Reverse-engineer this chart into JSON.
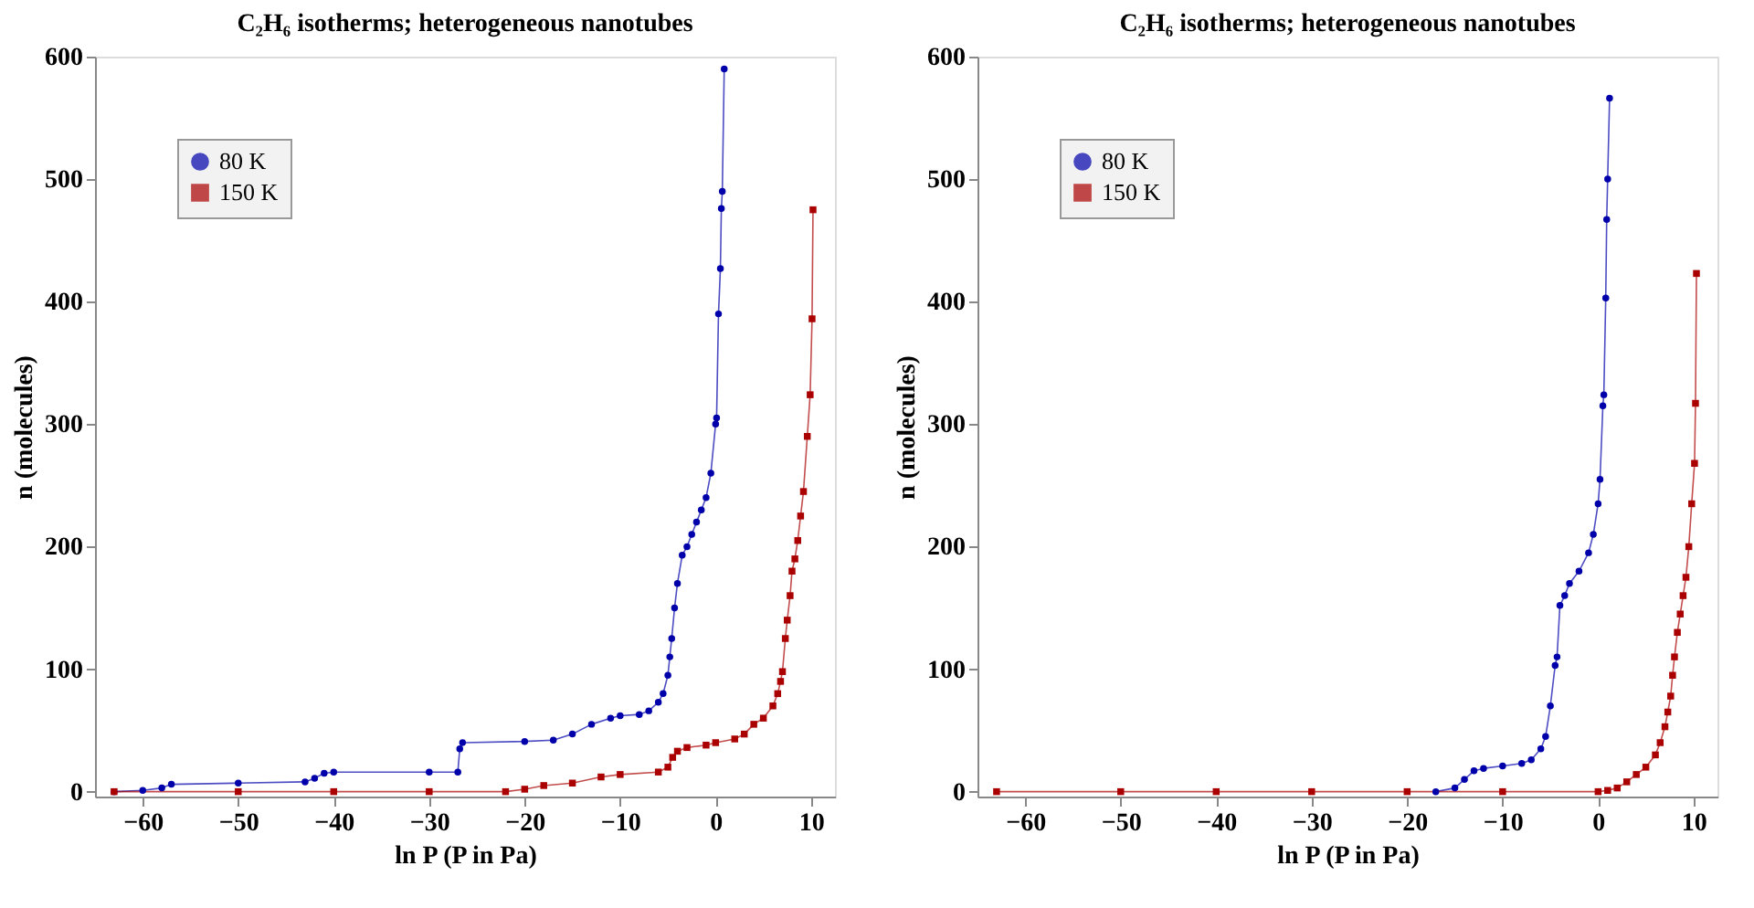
{
  "chart_data": [
    {
      "type": "line",
      "title": "C₂H₆ isotherms; heterogeneous nanotubes",
      "xlabel": "ln P (P in Pa)",
      "ylabel": "n  (molecules)",
      "xlim": [
        -65,
        12.5
      ],
      "ylim": [
        -4,
        600
      ],
      "xticks": [
        -60,
        -50,
        -40,
        -30,
        -20,
        -10,
        0,
        10
      ],
      "yticks": [
        0,
        100,
        200,
        300,
        400,
        500,
        600
      ],
      "grid": false,
      "legend": "top left",
      "line_style": "solid",
      "series": [
        {
          "name": "80 K",
          "color": "#0000aa",
          "marker": "circle",
          "x": [
            -63,
            -60,
            -58,
            -57,
            -50,
            -43,
            -42,
            -41,
            -40,
            -30,
            -27,
            -26.8,
            -26.5,
            -20,
            -17,
            -15,
            -13,
            -11,
            -10,
            -8,
            -7,
            -6,
            -5.5,
            -5,
            -4.8,
            -4.6,
            -4.3,
            -4,
            -3.5,
            -3,
            -2.5,
            -2,
            -1.5,
            -1,
            -0.5,
            0,
            0.1,
            0.3,
            0.5,
            0.6,
            0.7,
            0.9
          ],
          "values": [
            0,
            1,
            3,
            6,
            7,
            8,
            11,
            15,
            16,
            16,
            16,
            35,
            40,
            41,
            42,
            47,
            55,
            60,
            62,
            63,
            66,
            73,
            80,
            95,
            110,
            125,
            150,
            170,
            193,
            200,
            210,
            220,
            230,
            240,
            260,
            300,
            305,
            390,
            427,
            476,
            490,
            590
          ]
        },
        {
          "name": "150 K",
          "color": "#aa0000",
          "marker": "square",
          "x": [
            -63,
            -50,
            -40,
            -30,
            -22,
            -20,
            -18,
            -15,
            -12,
            -10,
            -6,
            -5,
            -4.5,
            -4,
            -3,
            -1,
            0,
            2,
            3,
            4,
            5,
            6,
            6.5,
            6.8,
            7,
            7.3,
            7.5,
            7.8,
            8,
            8.3,
            8.6,
            8.9,
            9.2,
            9.6,
            9.9,
            10.1,
            10.2
          ],
          "values": [
            0,
            0,
            0,
            0,
            0,
            2,
            5,
            7,
            12,
            14,
            16,
            20,
            28,
            33,
            36,
            38,
            40,
            43,
            47,
            55,
            60,
            70,
            80,
            90,
            98,
            125,
            140,
            160,
            180,
            190,
            205,
            225,
            245,
            290,
            324,
            386,
            475
          ]
        }
      ]
    },
    {
      "type": "line",
      "title": "C₂H₆ isotherms; heterogeneous nanotubes",
      "xlabel": "ln P (P in Pa)",
      "ylabel": "n  (molecules)",
      "xlim": [
        -65,
        12.5
      ],
      "ylim": [
        -4,
        600
      ],
      "xticks": [
        -60,
        -50,
        -40,
        -30,
        -20,
        -10,
        0,
        10
      ],
      "yticks": [
        0,
        100,
        200,
        300,
        400,
        500,
        600
      ],
      "grid": false,
      "legend": "top left",
      "line_style": "solid",
      "series": [
        {
          "name": "80 K",
          "color": "#0000aa",
          "marker": "circle",
          "x": [
            -17,
            -15,
            -14,
            -13,
            -12,
            -10,
            -8,
            -7,
            -6,
            -5.5,
            -5,
            -4.5,
            -4.3,
            -4,
            -3.5,
            -3,
            -2,
            -1,
            -0.5,
            0,
            0.2,
            0.5,
            0.6,
            0.8,
            0.9,
            1.0,
            1.2
          ],
          "values": [
            0,
            3,
            10,
            17,
            19,
            21,
            23,
            26,
            35,
            45,
            70,
            103,
            110,
            152,
            160,
            170,
            180,
            195,
            210,
            235,
            255,
            315,
            324,
            403,
            467,
            500,
            566
          ]
        },
        {
          "name": "150 K",
          "color": "#aa0000",
          "marker": "square",
          "x": [
            -63,
            -50,
            -40,
            -30,
            -20,
            -10,
            0,
            1,
            2,
            3,
            4,
            5,
            6,
            6.5,
            7,
            7.3,
            7.6,
            7.8,
            8,
            8.3,
            8.6,
            8.9,
            9.2,
            9.5,
            9.8,
            10.1,
            10.2,
            10.3
          ],
          "values": [
            0,
            0,
            0,
            0,
            0,
            0,
            0,
            1,
            3,
            8,
            14,
            20,
            30,
            40,
            53,
            65,
            78,
            95,
            110,
            130,
            145,
            160,
            175,
            200,
            235,
            268,
            317,
            423
          ]
        }
      ]
    }
  ]
}
